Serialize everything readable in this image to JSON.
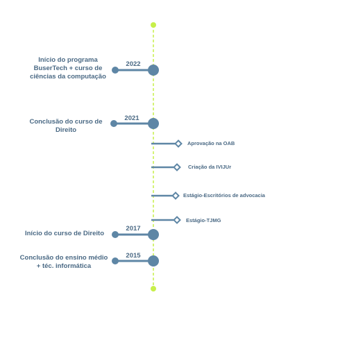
{
  "colors": {
    "axis": "#c7ef4a",
    "node": "#5e86a5",
    "text": "#4a6984",
    "background": "#ffffff"
  },
  "milestones": [
    {
      "year": "2022",
      "label_lines": [
        "Início do programa",
        "BuserTech + curso de",
        "ciências da computação"
      ]
    },
    {
      "year": "2021",
      "label_lines": [
        "Conclusão do curso de",
        "Direito"
      ]
    },
    {
      "year": "2017",
      "label_lines": [
        "Início do curso de Direito"
      ]
    },
    {
      "year": "2015",
      "label_lines": [
        "Conclusão do ensino médio",
        "+ téc. informática"
      ]
    }
  ],
  "events": [
    {
      "label": "Aprovação na OAB"
    },
    {
      "label": "Criação da IVIJUr"
    },
    {
      "label": "Estágio-Escritórios de advocacia"
    },
    {
      "label": "Estágio-TJMG"
    }
  ]
}
